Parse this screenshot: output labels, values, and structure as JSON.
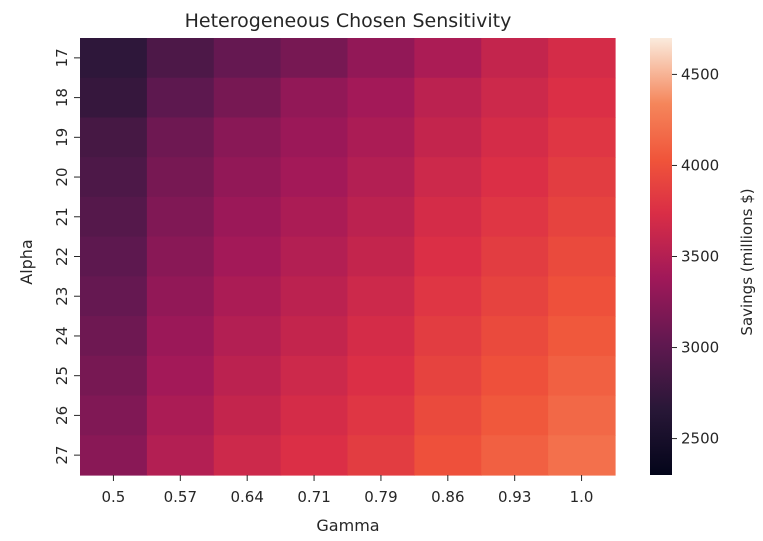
{
  "chart_data": {
    "type": "heatmap",
    "title": "Heterogeneous Chosen Sensitivity",
    "xlabel": "Gamma",
    "ylabel": "Alpha",
    "x": [
      "0.5",
      "0.57",
      "0.64",
      "0.71",
      "0.79",
      "0.86",
      "0.93",
      "1.0"
    ],
    "y": [
      "17",
      "18",
      "19",
      "20",
      "21",
      "22",
      "23",
      "24",
      "25",
      "26",
      "27"
    ],
    "values": [
      [
        2700,
        2900,
        3050,
        3150,
        3300,
        3450,
        3600,
        3700
      ],
      [
        2750,
        3000,
        3150,
        3300,
        3400,
        3550,
        3650,
        3750
      ],
      [
        2850,
        3100,
        3250,
        3350,
        3450,
        3600,
        3700,
        3800
      ],
      [
        2900,
        3150,
        3300,
        3400,
        3500,
        3650,
        3750,
        3850
      ],
      [
        2950,
        3200,
        3350,
        3450,
        3550,
        3700,
        3800,
        3900
      ],
      [
        3000,
        3250,
        3400,
        3500,
        3600,
        3750,
        3850,
        3950
      ],
      [
        3050,
        3300,
        3450,
        3550,
        3650,
        3800,
        3900,
        4000
      ],
      [
        3100,
        3350,
        3500,
        3600,
        3700,
        3850,
        3950,
        4050
      ],
      [
        3150,
        3400,
        3550,
        3650,
        3750,
        3900,
        4000,
        4100
      ],
      [
        3200,
        3450,
        3600,
        3700,
        3800,
        3950,
        4050,
        4150
      ],
      [
        3250,
        3500,
        3650,
        3750,
        3850,
        4000,
        4100,
        4200
      ]
    ],
    "colorbar": {
      "label": "Savings (millions $)",
      "range": [
        2300,
        4700
      ],
      "ticks": [
        "2500",
        "3000",
        "3500",
        "4000",
        "4500"
      ],
      "colormap": "rocket"
    }
  }
}
